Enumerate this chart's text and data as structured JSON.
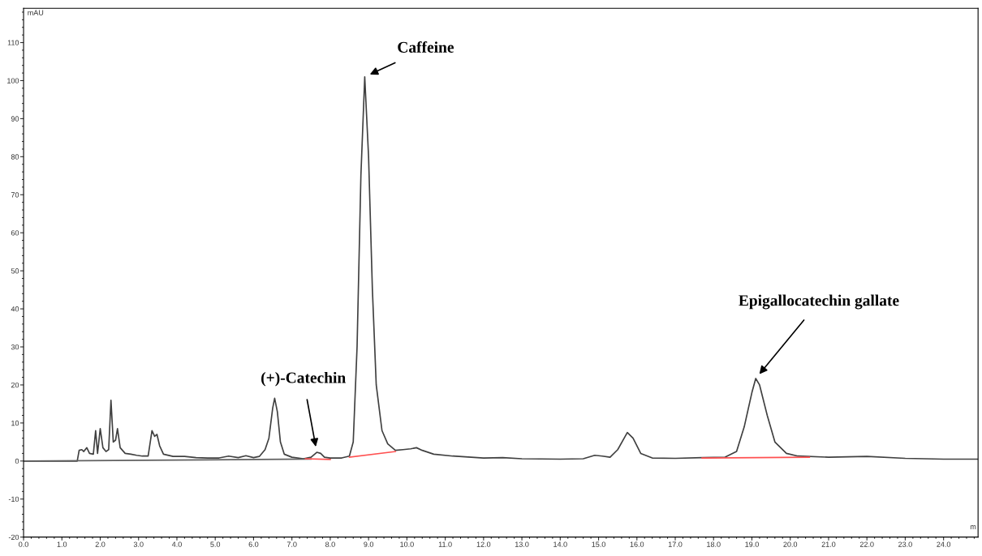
{
  "chart_data": {
    "type": "line",
    "ylabel": "mAU",
    "xlabel": "m",
    "xlim": [
      0,
      24.9
    ],
    "ylim": [
      -20,
      119
    ],
    "xticks": [
      {
        "value": 0,
        "label": "0.0"
      },
      {
        "value": 1,
        "label": "1.0"
      },
      {
        "value": 2,
        "label": "2.0"
      },
      {
        "value": 3,
        "label": "3.0"
      },
      {
        "value": 4,
        "label": "4.0"
      },
      {
        "value": 5,
        "label": "5.0"
      },
      {
        "value": 6,
        "label": "6.0"
      },
      {
        "value": 7,
        "label": "7.0"
      },
      {
        "value": 8,
        "label": "8.0"
      },
      {
        "value": 9,
        "label": "9.0"
      },
      {
        "value": 10,
        "label": "10.0"
      },
      {
        "value": 11,
        "label": "11.0"
      },
      {
        "value": 12,
        "label": "12.0"
      },
      {
        "value": 13,
        "label": "13.0"
      },
      {
        "value": 14,
        "label": "14.0"
      },
      {
        "value": 15,
        "label": "15.0"
      },
      {
        "value": 16,
        "label": "16.0"
      },
      {
        "value": 17,
        "label": "17.0"
      },
      {
        "value": 18,
        "label": "18.0"
      },
      {
        "value": 19,
        "label": "19.0"
      },
      {
        "value": 20,
        "label": "20.0"
      },
      {
        "value": 21,
        "label": "21.0"
      },
      {
        "value": 22,
        "label": "22.0"
      },
      {
        "value": 23,
        "label": "23.0"
      },
      {
        "value": 24,
        "label": "24.0"
      }
    ],
    "yticks": [
      -20,
      -10,
      0,
      10,
      20,
      30,
      40,
      50,
      60,
      70,
      80,
      90,
      100,
      110
    ],
    "marker": "none",
    "series": [
      {
        "color": "#404040",
        "x": [
          0,
          1.4,
          1.45,
          1.52,
          1.57,
          1.65,
          1.72,
          1.82,
          1.88,
          1.93,
          2.0,
          2.07,
          2.15,
          2.22,
          2.28,
          2.34,
          2.4,
          2.45,
          2.52,
          2.65,
          2.8,
          2.95,
          3.1,
          3.25,
          3.35,
          3.42,
          3.48,
          3.55,
          3.65,
          3.9,
          4.2,
          4.5,
          4.8,
          5.1,
          5.35,
          5.6,
          5.8,
          6.0,
          6.15,
          6.3,
          6.4,
          6.5,
          6.55,
          6.62,
          6.7,
          6.8,
          7.0,
          7.3,
          7.5,
          7.65,
          7.75,
          7.85,
          8.0,
          8.3,
          8.5,
          8.6,
          8.7,
          8.8,
          8.9,
          9.0,
          9.1,
          9.2,
          9.35,
          9.5,
          9.7,
          9.9,
          10.1,
          10.25,
          10.4,
          10.7,
          11.2,
          12,
          12.5,
          13,
          14,
          14.6,
          14.9,
          15.1,
          15.3,
          15.5,
          15.75,
          15.9,
          16.1,
          16.4,
          17,
          17.7,
          18.3,
          18.6,
          18.8,
          19.0,
          19.1,
          19.2,
          19.4,
          19.6,
          19.9,
          20.2,
          21,
          22,
          23,
          24,
          24.9
        ],
        "values": [
          0,
          0,
          2.8,
          3,
          2.5,
          3.5,
          2,
          1.8,
          8,
          2,
          8.5,
          3.5,
          2.5,
          3,
          16,
          5,
          5.5,
          8.5,
          3.5,
          2,
          1.8,
          1.5,
          1.3,
          1.3,
          8,
          6.5,
          7,
          4,
          1.8,
          1.2,
          1.2,
          0.9,
          0.8,
          0.8,
          1.3,
          0.9,
          1.4,
          0.9,
          1.2,
          3,
          6,
          14,
          16.5,
          13,
          5,
          1.8,
          1.0,
          0.6,
          1.0,
          2.3,
          2.0,
          1.0,
          0.8,
          0.8,
          1.3,
          5,
          30,
          75,
          101,
          80,
          45,
          20,
          8,
          4.5,
          2.8,
          3,
          3.2,
          3.5,
          2.8,
          1.8,
          1.3,
          0.8,
          0.9,
          0.6,
          0.5,
          0.6,
          1.5,
          1.3,
          1.0,
          3,
          7.5,
          6,
          2,
          0.8,
          0.7,
          0.9,
          1.0,
          2.5,
          9,
          18,
          21.7,
          20,
          12,
          5,
          2,
          1.3,
          1.0,
          1.2,
          0.7,
          0.5,
          0.5
        ]
      },
      {
        "color": "#606060",
        "x": [
          0,
          7.5
        ],
        "values": [
          0,
          0.5
        ]
      },
      {
        "color": "#ff5050",
        "x": [
          7.35,
          8.0
        ],
        "values": [
          0.6,
          0.4
        ]
      },
      {
        "color": "#ff5050",
        "x": [
          8.5,
          9.7
        ],
        "values": [
          1.0,
          2.5
        ]
      },
      {
        "color": "#ff5050",
        "x": [
          17.7,
          20.5
        ],
        "values": [
          0.8,
          1.0
        ]
      }
    ],
    "annotations": [
      {
        "text": "(+)-Catechin",
        "x": 7.65,
        "y": 2.3
      },
      {
        "text": "Caffeine",
        "x": 8.9,
        "y": 101
      },
      {
        "text": "Epigallocatechin gallate",
        "x": 19.1,
        "y": 21.7
      }
    ]
  }
}
